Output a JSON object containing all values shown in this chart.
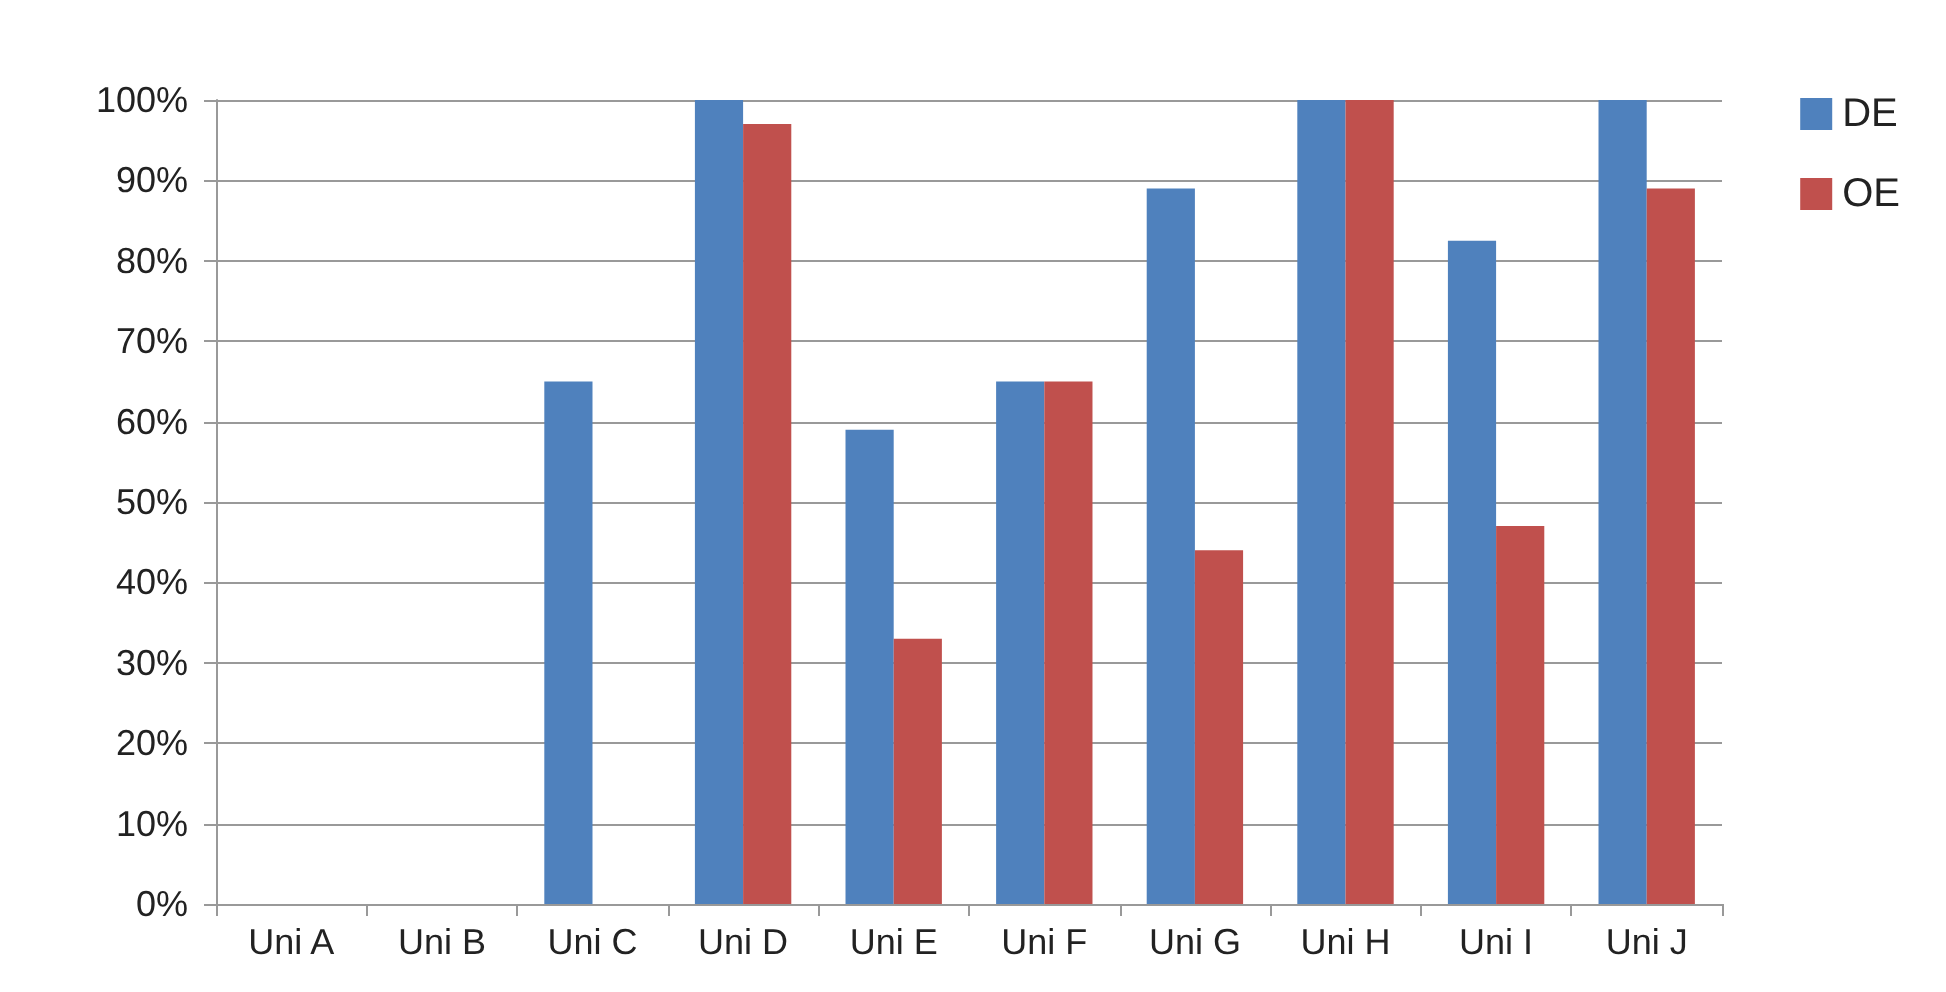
{
  "chart_data": {
    "type": "bar",
    "categories": [
      "Uni A",
      "Uni B",
      "Uni C",
      "Uni D",
      "Uni E",
      "Uni F",
      "Uni G",
      "Uni H",
      "Uni I",
      "Uni J"
    ],
    "series": [
      {
        "name": "DE",
        "color": "#4f81bd",
        "values": [
          0,
          0,
          65,
          100,
          59,
          65,
          89,
          100,
          82.5,
          100
        ]
      },
      {
        "name": "OE",
        "color": "#c0504d",
        "values": [
          0,
          0,
          0,
          97,
          33,
          65,
          44,
          100,
          47,
          89
        ]
      }
    ],
    "ylim": [
      0,
      100
    ],
    "yticks": [
      {
        "value": 0,
        "label": "0%"
      },
      {
        "value": 10,
        "label": "10%"
      },
      {
        "value": 20,
        "label": "20%"
      },
      {
        "value": 30,
        "label": "30%"
      },
      {
        "value": 40,
        "label": "40%"
      },
      {
        "value": 50,
        "label": "50%"
      },
      {
        "value": 60,
        "label": "60%"
      },
      {
        "value": 70,
        "label": "70%"
      },
      {
        "value": 80,
        "label": "80%"
      },
      {
        "value": 90,
        "label": "90%"
      },
      {
        "value": 100,
        "label": "100%"
      }
    ],
    "grid": "y",
    "legend": "right"
  }
}
